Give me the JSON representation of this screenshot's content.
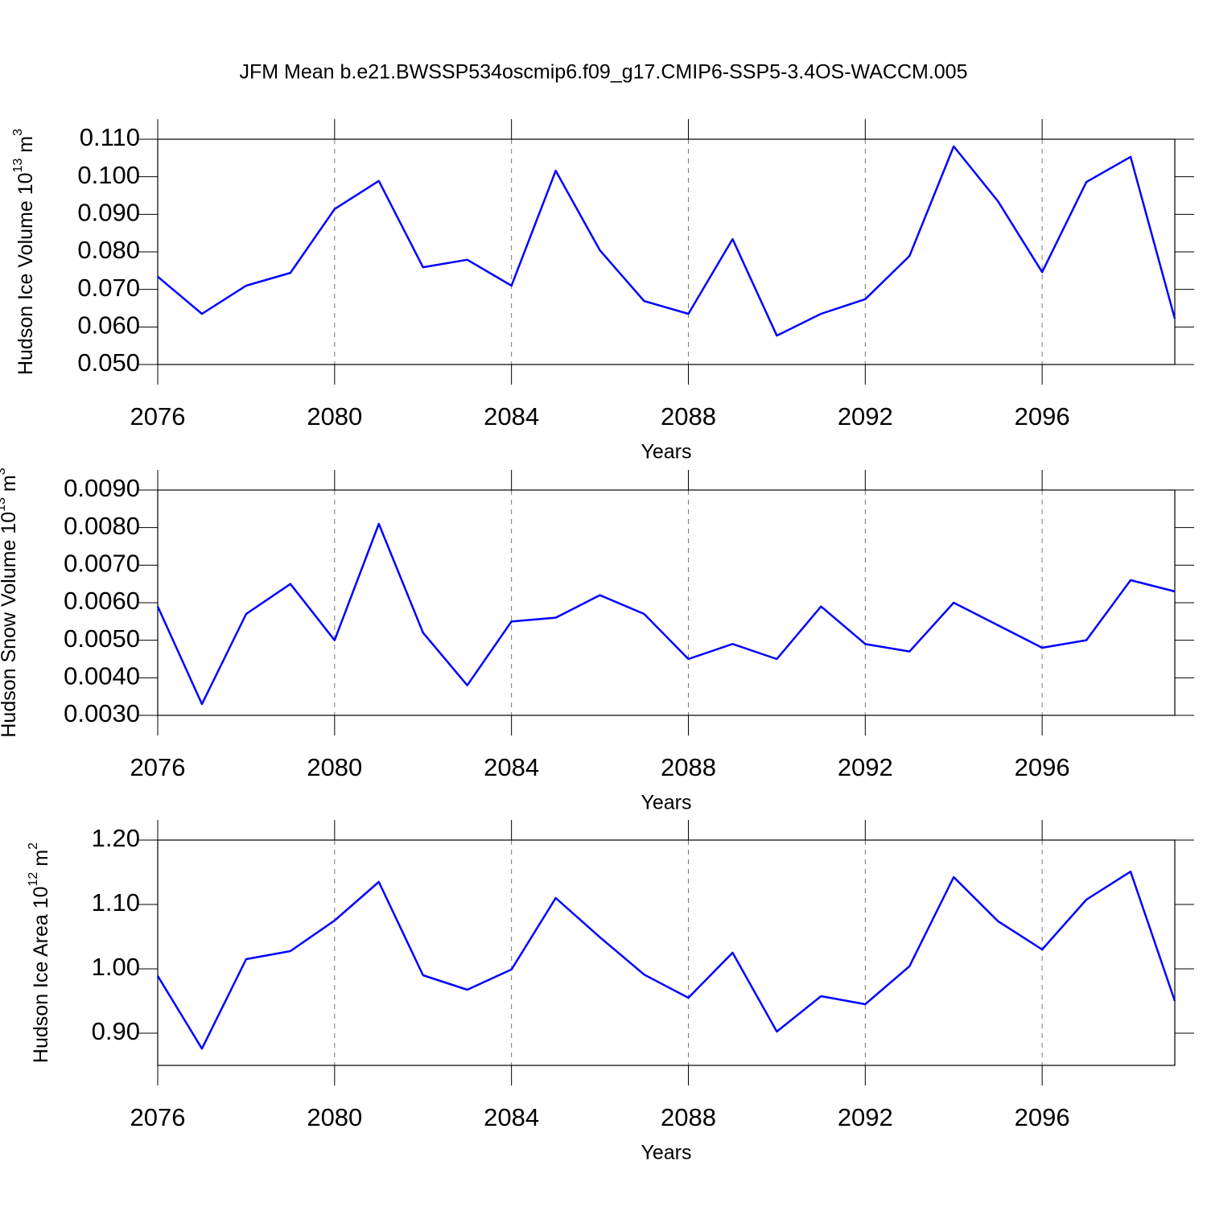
{
  "chart_data": [
    {
      "type": "line",
      "title": "JFM Mean b.e21.BWSSP534oscmip6.f09_g17.CMIP6-SSP5-3.4OS-WACCM.005",
      "ylabel": [
        "Hudson Ice Volume 10",
        "13",
        "m",
        "3"
      ],
      "xlabel": "Years",
      "x": [
        2076,
        2077,
        2078,
        2079,
        2080,
        2081,
        2082,
        2083,
        2084,
        2085,
        2086,
        2087,
        2088,
        2089,
        2090,
        2091,
        2092,
        2093,
        2094,
        2095,
        2096,
        2097,
        2098,
        2099
      ],
      "values": [
        0.0734,
        0.0635,
        0.071,
        0.0744,
        0.0914,
        0.0989,
        0.0759,
        0.0779,
        0.071,
        0.1016,
        0.0804,
        0.0669,
        0.0635,
        0.0834,
        0.0577,
        0.0635,
        0.0674,
        0.0789,
        0.1081,
        0.0935,
        0.0746,
        0.0986,
        0.1053,
        0.0622
      ],
      "color": "#0000ff",
      "xlim": [
        2076,
        2099
      ],
      "xticks": [
        2076,
        2080,
        2084,
        2088,
        2092,
        2096
      ],
      "ylim": [
        0.05,
        0.11
      ],
      "yticks": [
        {
          "value": 0.05,
          "label": "0.050"
        },
        {
          "value": 0.06,
          "label": "0.060"
        },
        {
          "value": 0.07,
          "label": "0.070"
        },
        {
          "value": 0.08,
          "label": "0.080"
        },
        {
          "value": 0.09,
          "label": "0.090"
        },
        {
          "value": 0.1,
          "label": "0.100"
        },
        {
          "value": 0.11,
          "label": "0.110"
        }
      ],
      "grid": "x"
    },
    {
      "type": "line",
      "ylabel": [
        "Hudson Snow Volume 10",
        "13",
        "m",
        "3"
      ],
      "xlabel": "Years",
      "x": [
        2076,
        2077,
        2078,
        2079,
        2080,
        2081,
        2082,
        2083,
        2084,
        2085,
        2086,
        2087,
        2088,
        2089,
        2090,
        2091,
        2092,
        2093,
        2094,
        2095,
        2096,
        2097,
        2098,
        2099
      ],
      "values": [
        0.0059,
        0.0033,
        0.0057,
        0.0065,
        0.005,
        0.0081,
        0.0052,
        0.0038,
        0.0055,
        0.0056,
        0.0062,
        0.0057,
        0.0045,
        0.0049,
        0.0045,
        0.0059,
        0.0049,
        0.0047,
        0.006,
        0.0054,
        0.0048,
        0.005,
        0.0066,
        0.0063
      ],
      "color": "#0000ff",
      "xlim": [
        2076,
        2099
      ],
      "xticks": [
        2076,
        2080,
        2084,
        2088,
        2092,
        2096
      ],
      "ylim": [
        0.003,
        0.009
      ],
      "yticks": [
        {
          "value": 0.003,
          "label": "0.0030"
        },
        {
          "value": 0.004,
          "label": "0.0040"
        },
        {
          "value": 0.005,
          "label": "0.0050"
        },
        {
          "value": 0.006,
          "label": "0.0060"
        },
        {
          "value": 0.007,
          "label": "0.0070"
        },
        {
          "value": 0.008,
          "label": "0.0080"
        },
        {
          "value": 0.009,
          "label": "0.0090"
        }
      ],
      "grid": "x"
    },
    {
      "type": "line",
      "ylabel": [
        "Hudson Ice Area 10",
        "12",
        "m",
        "2"
      ],
      "xlabel": "Years",
      "x": [
        2076,
        2077,
        2078,
        2079,
        2080,
        2081,
        2082,
        2083,
        2084,
        2085,
        2086,
        2087,
        2088,
        2089,
        2090,
        2091,
        2092,
        2093,
        2094,
        2095,
        2096,
        2097,
        2098,
        2099
      ],
      "values": [
        0.989,
        0.876,
        1.015,
        1.0275,
        1.075,
        1.135,
        0.99,
        0.9675,
        0.999,
        1.11,
        1.049,
        0.991,
        0.955,
        1.025,
        0.9025,
        0.9575,
        0.945,
        1.004,
        1.1425,
        1.074,
        1.03,
        1.1075,
        1.151,
        0.95
      ],
      "color": "#0000ff",
      "xlim": [
        2076,
        2099
      ],
      "xticks": [
        2076,
        2080,
        2084,
        2088,
        2092,
        2096
      ],
      "ylim": [
        0.85,
        1.2
      ],
      "yticks": [
        {
          "value": 0.9,
          "label": "0.90"
        },
        {
          "value": 1.0,
          "label": "1.00"
        },
        {
          "value": 1.1,
          "label": "1.10"
        },
        {
          "value": 1.2,
          "label": "1.20"
        }
      ],
      "grid": "x"
    }
  ]
}
